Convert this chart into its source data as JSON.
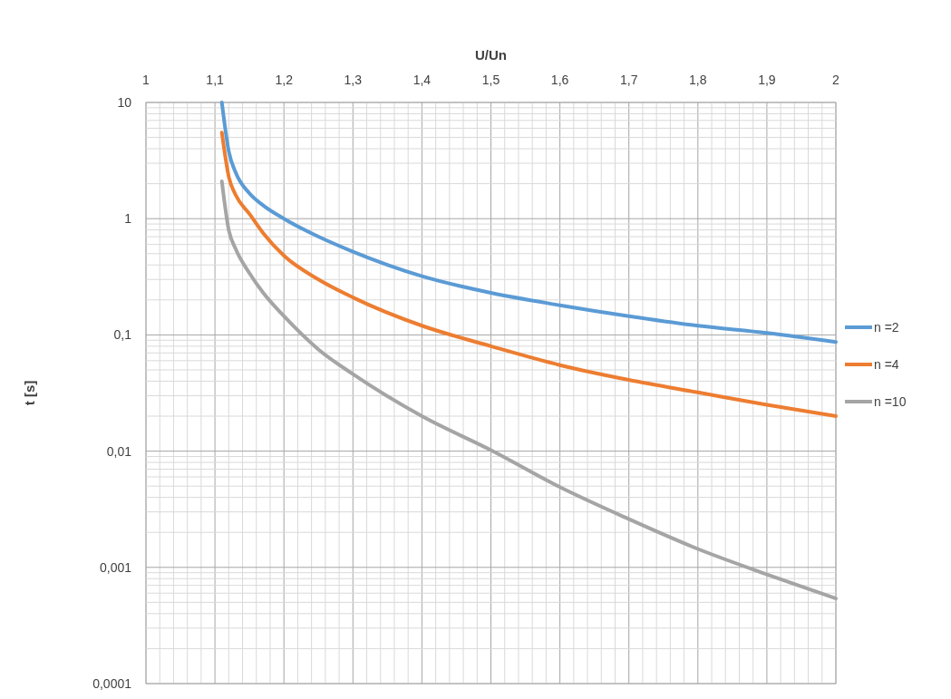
{
  "chart_data": {
    "type": "line",
    "xlabel": "U/Un",
    "ylabel": "t [s]",
    "log": "y",
    "grid": true,
    "legend": "right",
    "line_style": "solid",
    "xlim": [
      1,
      2
    ],
    "xticks": [
      1,
      {
        "value": 1.02,
        "label": null
      },
      {
        "value": 1.04,
        "label": null
      },
      {
        "value": 1.06,
        "label": null
      },
      {
        "value": 1.08,
        "label": null
      },
      {
        "value": 1.1,
        "label": "1,1"
      },
      {
        "value": 1.12,
        "label": null
      },
      {
        "value": 1.14,
        "label": null
      },
      {
        "value": 1.16,
        "label": null
      },
      {
        "value": 1.18,
        "label": null
      },
      {
        "value": 1.2,
        "label": "1,2"
      },
      {
        "value": 1.22,
        "label": null
      },
      {
        "value": 1.24,
        "label": null
      },
      {
        "value": 1.26,
        "label": null
      },
      {
        "value": 1.28,
        "label": null
      },
      {
        "value": 1.3,
        "label": "1,3"
      },
      {
        "value": 1.32,
        "label": null
      },
      {
        "value": 1.34,
        "label": null
      },
      {
        "value": 1.36,
        "label": null
      },
      {
        "value": 1.38,
        "label": null
      },
      {
        "value": 1.4,
        "label": "1,4"
      },
      {
        "value": 1.42,
        "label": null
      },
      {
        "value": 1.44,
        "label": null
      },
      {
        "value": 1.46,
        "label": null
      },
      {
        "value": 1.48,
        "label": null
      },
      {
        "value": 1.5,
        "label": "1,5"
      },
      {
        "value": 1.52,
        "label": null
      },
      {
        "value": 1.54,
        "label": null
      },
      {
        "value": 1.56,
        "label": null
      },
      {
        "value": 1.58,
        "label": null
      },
      {
        "value": 1.6,
        "label": "1,6"
      },
      {
        "value": 1.62,
        "label": null
      },
      {
        "value": 1.64,
        "label": null
      },
      {
        "value": 1.66,
        "label": null
      },
      {
        "value": 1.68,
        "label": null
      },
      {
        "value": 1.7,
        "label": "1,7"
      },
      {
        "value": 1.72,
        "label": null
      },
      {
        "value": 1.74,
        "label": null
      },
      {
        "value": 1.76,
        "label": null
      },
      {
        "value": 1.78,
        "label": null
      },
      {
        "value": 1.8,
        "label": "1,8"
      },
      {
        "value": 1.82,
        "label": null
      },
      {
        "value": 1.84,
        "label": null
      },
      {
        "value": 1.86,
        "label": null
      },
      {
        "value": 1.88,
        "label": null
      },
      {
        "value": 1.9,
        "label": "1,9"
      },
      {
        "value": 1.92,
        "label": null
      },
      {
        "value": 1.94,
        "label": null
      },
      {
        "value": 1.96,
        "label": null
      },
      {
        "value": 1.98,
        "label": null
      },
      2
    ],
    "ylim": [
      0.0001,
      10
    ],
    "yticks": [
      {
        "value": 0.0001,
        "label": "0,0001"
      },
      {
        "value": 0.0002,
        "label": null
      },
      {
        "value": 0.0003,
        "label": null
      },
      {
        "value": 0.0004,
        "label": null
      },
      {
        "value": 0.0005,
        "label": null
      },
      {
        "value": 0.0006,
        "label": null
      },
      {
        "value": 0.0007,
        "label": null
      },
      {
        "value": 0.0008,
        "label": null
      },
      {
        "value": 0.0009,
        "label": null
      },
      {
        "value": 0.001,
        "label": "0,001"
      },
      {
        "value": 0.002,
        "label": null
      },
      {
        "value": 0.003,
        "label": null
      },
      {
        "value": 0.004,
        "label": null
      },
      {
        "value": 0.005,
        "label": null
      },
      {
        "value": 0.006,
        "label": null
      },
      {
        "value": 0.007,
        "label": null
      },
      {
        "value": 0.008,
        "label": null
      },
      {
        "value": 0.009,
        "label": null
      },
      {
        "value": 0.01,
        "label": "0,01"
      },
      {
        "value": 0.02,
        "label": null
      },
      {
        "value": 0.03,
        "label": null
      },
      {
        "value": 0.04,
        "label": null
      },
      {
        "value": 0.05,
        "label": null
      },
      {
        "value": 0.06,
        "label": null
      },
      {
        "value": 0.07,
        "label": null
      },
      {
        "value": 0.08,
        "label": null
      },
      {
        "value": 0.09,
        "label": null
      },
      {
        "value": 0.1,
        "label": "0,1"
      },
      {
        "value": 0.2,
        "label": null
      },
      {
        "value": 0.3,
        "label": null
      },
      {
        "value": 0.4,
        "label": null
      },
      {
        "value": 0.5,
        "label": null
      },
      {
        "value": 0.6,
        "label": null
      },
      {
        "value": 0.7,
        "label": null
      },
      {
        "value": 0.8,
        "label": null
      },
      {
        "value": 0.9,
        "label": null
      },
      1,
      {
        "value": 2,
        "label": null
      },
      {
        "value": 3,
        "label": null
      },
      {
        "value": 4,
        "label": null
      },
      {
        "value": 5,
        "label": null
      },
      {
        "value": 6,
        "label": null
      },
      {
        "value": 7,
        "label": null
      },
      {
        "value": 8,
        "label": null
      },
      {
        "value": 9,
        "label": null
      },
      10
    ],
    "x": [
      1.11,
      1.12,
      1.13,
      1.15,
      1.17,
      1.2,
      1.25,
      1.3,
      1.4,
      1.5,
      1.6,
      1.7,
      1.8,
      1.9,
      2
    ],
    "series": [
      {
        "name": "n =2",
        "color": "#5b9bd5",
        "values": [
          10,
          3.8,
          2.5,
          1.65,
          1.3,
          1.0,
          0.7,
          0.52,
          0.32,
          0.23,
          0.18,
          0.145,
          0.12,
          0.104,
          0.087
        ]
      },
      {
        "name": "n =4",
        "color": "#ed7d31",
        "values": [
          5.5,
          2.3,
          1.6,
          1.1,
          0.75,
          0.48,
          0.3,
          0.21,
          0.12,
          0.08,
          0.055,
          0.041,
          0.032,
          0.025,
          0.02
        ]
      },
      {
        "name": "n =10",
        "color": "#a5a5a5",
        "values": [
          2.1,
          0.8,
          0.55,
          0.34,
          0.23,
          0.145,
          0.075,
          0.046,
          0.02,
          0.0102,
          0.0049,
          0.0026,
          0.00144,
          0.00087,
          0.00054
        ]
      }
    ]
  }
}
